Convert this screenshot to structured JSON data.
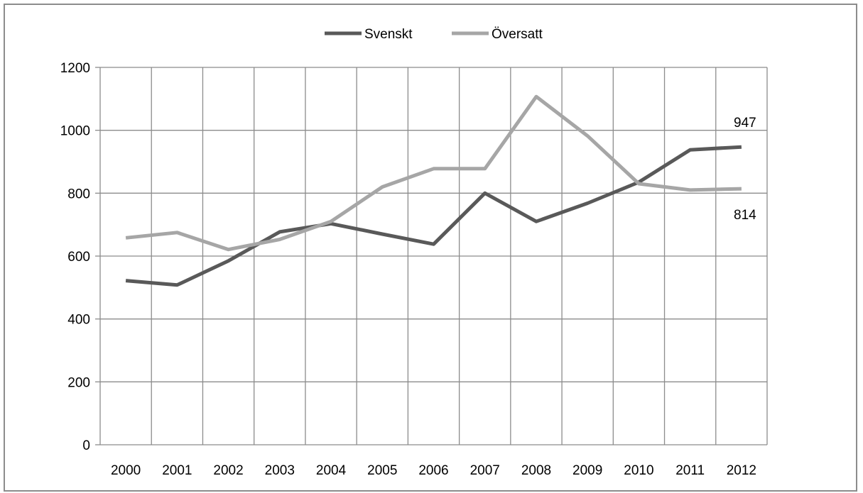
{
  "chart_data": {
    "type": "line",
    "title": "",
    "xlabel": "",
    "ylabel": "",
    "x": [
      "2000",
      "2001",
      "2002",
      "2003",
      "2004",
      "2005",
      "2006",
      "2007",
      "2008",
      "2009",
      "2010",
      "2011",
      "2012"
    ],
    "ylim": [
      0,
      1200
    ],
    "yticks": [
      0,
      200,
      400,
      600,
      800,
      1000,
      1200
    ],
    "grid": true,
    "legend_position": "top",
    "series": [
      {
        "name": "Svenskt",
        "color": "#595959",
        "values": [
          522,
          508,
          585,
          677,
          703,
          670,
          638,
          800,
          710,
          768,
          835,
          938,
          947
        ],
        "end_label": "947"
      },
      {
        "name": "Översatt",
        "color": "#a6a6a6",
        "values": [
          658,
          675,
          621,
          653,
          710,
          820,
          878,
          878,
          1107,
          982,
          830,
          810,
          814
        ],
        "end_label": "814"
      }
    ]
  }
}
